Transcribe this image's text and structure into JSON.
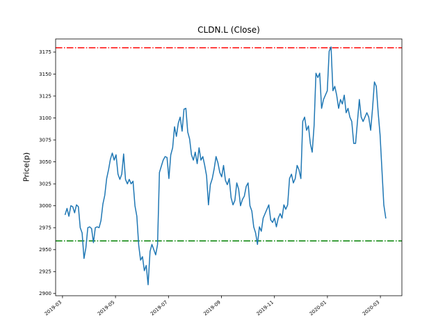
{
  "chart_data": {
    "type": "line",
    "title": "CLDN.L (Close)",
    "xlabel": "",
    "ylabel": "Price(p)",
    "grid": false,
    "legend": null,
    "xlim": [
      -0.26,
      12.81
    ],
    "ylim": [
      2897.5,
      3190
    ],
    "x_range_months": [
      0.1,
      12.2
    ],
    "x_ticks": [
      {
        "pos": 0,
        "label": "2019-03"
      },
      {
        "pos": 2,
        "label": "2019-05"
      },
      {
        "pos": 4,
        "label": "2019-07"
      },
      {
        "pos": 6,
        "label": "2019-09"
      },
      {
        "pos": 8,
        "label": "2019-11"
      },
      {
        "pos": 10,
        "label": "2020-01"
      },
      {
        "pos": 12,
        "label": "2020-03"
      }
    ],
    "y_ticks": [
      2900,
      2925,
      2950,
      2975,
      3000,
      3025,
      3050,
      3075,
      3100,
      3125,
      3150,
      3175
    ],
    "reference_lines": [
      {
        "name": "upper-threshold",
        "value": 3180,
        "color": "#ff0000",
        "style": "dashdot"
      },
      {
        "name": "lower-threshold",
        "value": 2960,
        "color": "#008000",
        "style": "dashdot"
      }
    ],
    "series": [
      {
        "name": "Close",
        "color": "#1f77b4",
        "style": "solid",
        "values": [
          2990,
          2997,
          2988,
          3000,
          2999,
          2992,
          3001,
          2999,
          2975,
          2969,
          2940,
          2952,
          2975,
          2976,
          2974,
          2958,
          2975,
          2976,
          2975,
          2983,
          3002,
          3012,
          3031,
          3041,
          3053,
          3060,
          3052,
          3058,
          3036,
          3030,
          3036,
          3059,
          3030,
          3025,
          3030,
          3025,
          3028,
          3000,
          2988,
          2955,
          2938,
          2942,
          2926,
          2932,
          2910,
          2948,
          2956,
          2950,
          2944,
          2956,
          3038,
          3045,
          3052,
          3056,
          3055,
          3031,
          3058,
          3066,
          3090,
          3079,
          3094,
          3101,
          3085,
          3110,
          3111,
          3084,
          3076,
          3058,
          3052,
          3061,
          3048,
          3066,
          3052,
          3056,
          3046,
          3034,
          3001,
          3024,
          3031,
          3042,
          3056,
          3049,
          3038,
          3033,
          3046,
          3029,
          3024,
          3031,
          3009,
          3001,
          3006,
          3026,
          3019,
          3000,
          3007,
          3011,
          3022,
          3026,
          3000,
          2994,
          2976,
          2969,
          2956,
          2976,
          2971,
          2986,
          2991,
          2996,
          3001,
          2984,
          2981,
          2986,
          2976,
          2986,
          2991,
          2986,
          3001,
          2996,
          3001,
          3031,
          3036,
          3026,
          3031,
          3046,
          3041,
          3031,
          3096,
          3101,
          3086,
          3091,
          3071,
          3061,
          3091,
          3151,
          3146,
          3151,
          3111,
          3121,
          3126,
          3131,
          3176,
          3181,
          3131,
          3136,
          3126,
          3111,
          3121,
          3116,
          3126,
          3106,
          3111,
          3101,
          3096,
          3071,
          3071,
          3096,
          3121,
          3101,
          3096,
          3101,
          3106,
          3101,
          3086,
          3111,
          3141,
          3136,
          3106,
          3081,
          3041,
          3001,
          2986
        ]
      }
    ]
  }
}
